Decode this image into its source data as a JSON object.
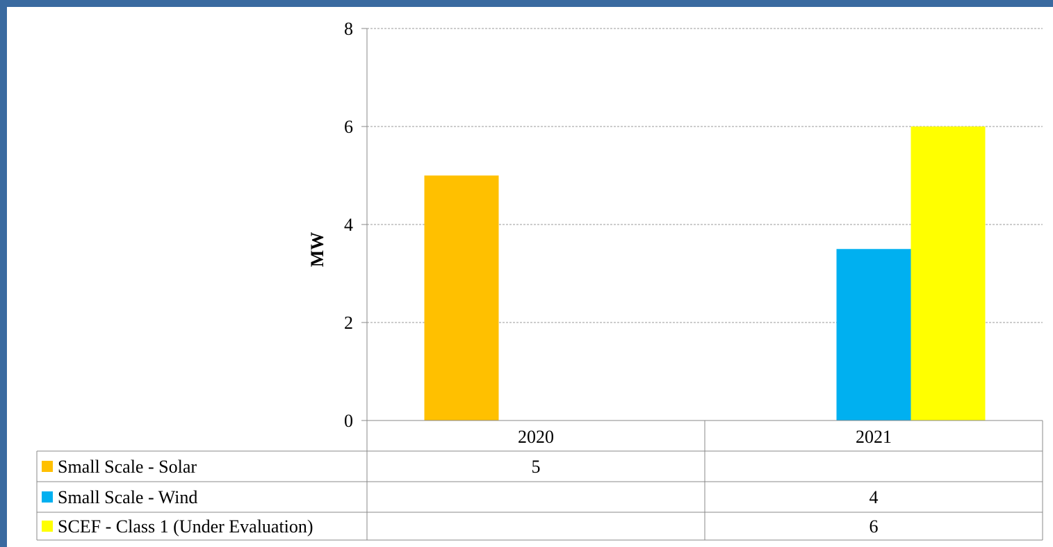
{
  "colors": {
    "frame": "#3a6aa0",
    "gridline": "#9a9a9a",
    "axis": "#888888"
  },
  "chart_data": {
    "type": "bar",
    "categories": [
      "2020",
      "2021"
    ],
    "ylabel": "MW",
    "ylim": [
      0,
      8
    ],
    "yticks": [
      "0",
      "2",
      "4",
      "6",
      "8"
    ],
    "grid": true,
    "legend": "data-table-left",
    "series": [
      {
        "name": "Small Scale - Solar",
        "color": "#ffc000",
        "values": [
          5,
          null
        ],
        "labels": [
          "5",
          ""
        ]
      },
      {
        "name": "Small Scale - Wind",
        "color": "#00b0f0",
        "values": [
          null,
          3.5
        ],
        "labels": [
          "",
          "4"
        ]
      },
      {
        "name": "SCEF - Class 1 (Under Evaluation)",
        "color": "#ffff00",
        "values": [
          null,
          6
        ],
        "labels": [
          "",
          "6"
        ]
      }
    ]
  }
}
